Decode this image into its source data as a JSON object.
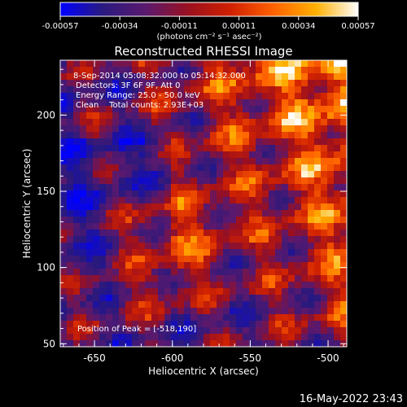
{
  "colorbar": {
    "ticks": [
      "-0.00057",
      "-0.00034",
      "-0.00011",
      "0.00011",
      "0.00034",
      "0.00057"
    ],
    "unit_label": "(photons cm⁻² s⁻¹ asec⁻²)",
    "colors": [
      "#0000ff",
      "#2a1a80",
      "#5a1a70",
      "#9a1020",
      "#d02000",
      "#ff6000",
      "#ffb000",
      "#ffffff"
    ]
  },
  "chart_data": {
    "type": "heatmap",
    "title": "Reconstructed RHESSI Image",
    "xlabel": "Heliocentric X (arcsec)",
    "ylabel": "Heliocentric Y (arcsec)",
    "xlim": [
      -672,
      -488
    ],
    "ylim": [
      48,
      236
    ],
    "x_ticks": [
      "-650",
      "-600",
      "-550",
      "-500"
    ],
    "y_ticks": [
      "50",
      "100",
      "150",
      "200"
    ],
    "annotations": [
      "8-Sep-2014 05:08:32.000 to 05:14:32.000",
      "Detectors: 3F 6F 9F, Att 0",
      "Energy Range: 25.0 - 50.0 keV",
      "Clean    Total counts: 2.93E+03"
    ],
    "peak_label": "Position of Peak = [-518,190]",
    "peak": [
      -518,
      190
    ]
  },
  "footer": {
    "timestamp": "16-May-2022 23:43"
  }
}
